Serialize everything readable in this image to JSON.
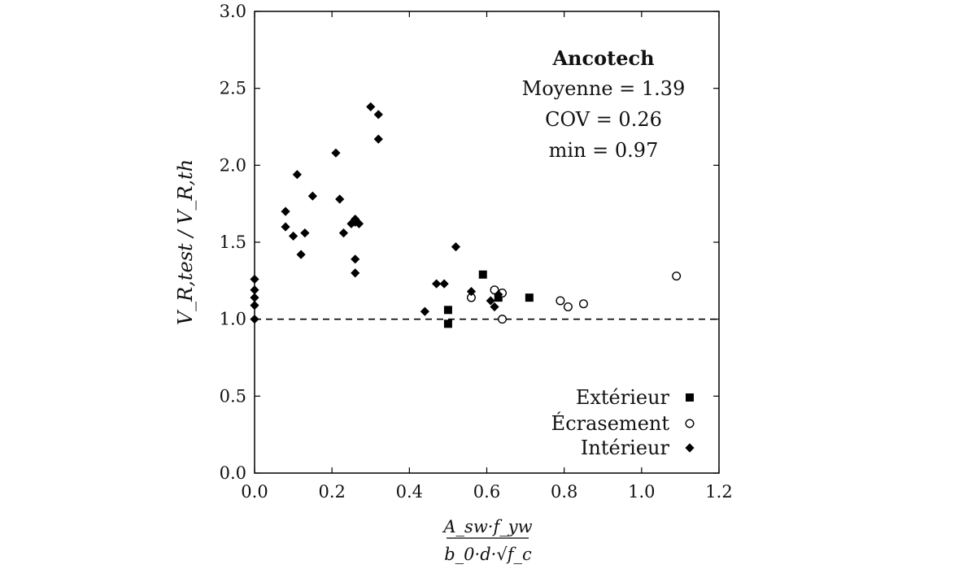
{
  "chart_data": {
    "type": "scatter",
    "title": "",
    "xlabel": {
      "numerator": "A_sw·f_yw",
      "denominator": "b_0·d·√f_c"
    },
    "ylabel": "V_R,test / V_R,th",
    "xlim": [
      0.0,
      1.2
    ],
    "ylim": [
      0.0,
      3.0
    ],
    "xticks": [
      "0.0",
      "0.2",
      "0.4",
      "0.6",
      "0.8",
      "1.0",
      "1.2"
    ],
    "yticks": [
      "0.0",
      "0.5",
      "1.0",
      "1.5",
      "2.0",
      "2.5",
      "3.0"
    ],
    "grid": false,
    "reference_line": {
      "y": 1.0,
      "style": "dashed"
    },
    "annotation": {
      "title": "Ancotech",
      "lines": [
        "Moyenne = 1.39",
        "COV = 0.26",
        "min = 0.97"
      ]
    },
    "legend_position": "bottom-right",
    "series": [
      {
        "name": "Extérieur",
        "marker": "square",
        "points": [
          [
            0.5,
            0.97
          ],
          [
            0.5,
            1.06
          ],
          [
            0.59,
            1.29
          ],
          [
            0.63,
            1.14
          ],
          [
            0.71,
            1.14
          ]
        ]
      },
      {
        "name": "Écrasement",
        "marker": "circle-open",
        "points": [
          [
            0.56,
            1.14
          ],
          [
            0.62,
            1.19
          ],
          [
            0.64,
            1.17
          ],
          [
            0.64,
            1.0
          ],
          [
            0.79,
            1.12
          ],
          [
            0.81,
            1.08
          ],
          [
            0.85,
            1.1
          ],
          [
            1.09,
            1.28
          ]
        ]
      },
      {
        "name": "Intérieur",
        "marker": "diamond",
        "points": [
          [
            0.0,
            1.0
          ],
          [
            0.0,
            1.09
          ],
          [
            0.0,
            1.14
          ],
          [
            0.0,
            1.19
          ],
          [
            0.0,
            1.26
          ],
          [
            0.08,
            1.6
          ],
          [
            0.08,
            1.7
          ],
          [
            0.1,
            1.54
          ],
          [
            0.11,
            1.94
          ],
          [
            0.12,
            1.42
          ],
          [
            0.13,
            1.56
          ],
          [
            0.15,
            1.8
          ],
          [
            0.21,
            2.08
          ],
          [
            0.22,
            1.78
          ],
          [
            0.23,
            1.56
          ],
          [
            0.25,
            1.62
          ],
          [
            0.26,
            1.63
          ],
          [
            0.26,
            1.65
          ],
          [
            0.27,
            1.62
          ],
          [
            0.26,
            1.39
          ],
          [
            0.26,
            1.3
          ],
          [
            0.3,
            2.38
          ],
          [
            0.32,
            2.33
          ],
          [
            0.32,
            2.17
          ],
          [
            0.44,
            1.05
          ],
          [
            0.47,
            1.23
          ],
          [
            0.49,
            1.23
          ],
          [
            0.52,
            1.47
          ],
          [
            0.56,
            1.18
          ],
          [
            0.61,
            1.12
          ],
          [
            0.62,
            1.08
          ],
          [
            0.63,
            1.16
          ]
        ]
      }
    ]
  }
}
